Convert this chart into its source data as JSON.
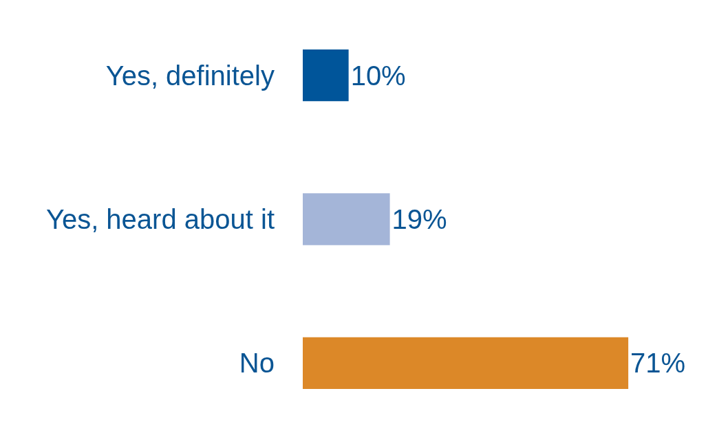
{
  "chart_data": {
    "type": "bar",
    "orientation": "horizontal",
    "categories": [
      "Yes, definitely",
      "Yes, heard about it",
      "No"
    ],
    "values": [
      10,
      19,
      71
    ],
    "colors": [
      "#00559a",
      "#a4b5d8",
      "#dc8828"
    ],
    "value_labels": [
      "10%",
      "19%",
      "71%"
    ]
  }
}
